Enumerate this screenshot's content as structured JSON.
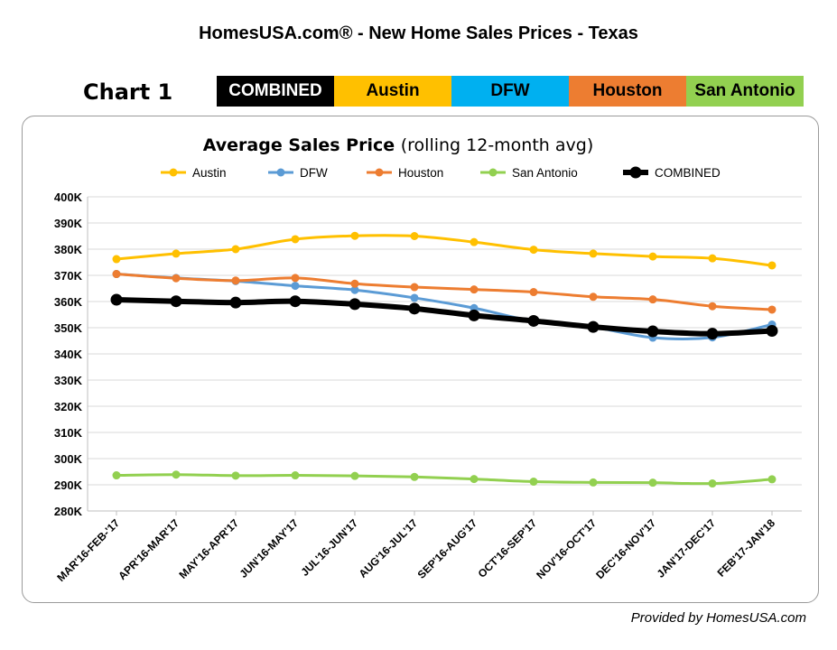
{
  "page_title": "HomesUSA.com® - New Home Sales Prices - Texas",
  "chart_number": "Chart 1",
  "color_bar": [
    {
      "label": "COMBINED",
      "bg": "#000000",
      "fg": "#ffffff"
    },
    {
      "label": "Austin",
      "bg": "#ffc000",
      "fg": "#000000"
    },
    {
      "label": "DFW",
      "bg": "#00b0f0",
      "fg": "#000000"
    },
    {
      "label": "Houston",
      "bg": "#ed7d31",
      "fg": "#000000"
    },
    {
      "label": "San Antonio",
      "bg": "#92d050",
      "fg": "#000000"
    }
  ],
  "footer": "Provided by HomesUSA.com",
  "chart_data": {
    "type": "line",
    "title": "Average Sales Price",
    "subtitle": "(rolling 12-month avg)",
    "legend_position": "top",
    "grid": true,
    "ylim": [
      280000,
      400000
    ],
    "yticks": [
      {
        "v": 280000,
        "label": "280K"
      },
      {
        "v": 290000,
        "label": "290K"
      },
      {
        "v": 300000,
        "label": "300K"
      },
      {
        "v": 310000,
        "label": "310K"
      },
      {
        "v": 320000,
        "label": "320K"
      },
      {
        "v": 330000,
        "label": "330K"
      },
      {
        "v": 340000,
        "label": "340K"
      },
      {
        "v": 350000,
        "label": "350K"
      },
      {
        "v": 360000,
        "label": "360K"
      },
      {
        "v": 370000,
        "label": "370K"
      },
      {
        "v": 380000,
        "label": "380K"
      },
      {
        "v": 390000,
        "label": "390K"
      },
      {
        "v": 400000,
        "label": "400K"
      }
    ],
    "categories": [
      "MAR'16-FEB-'17",
      "APR'16-MAR'17",
      "MAY'16-APR'17",
      "JUN'16-MAY'17",
      "JUL'16-JUN'17",
      "AUG'16-JUL'17",
      "SEP'16-AUG'17",
      "OCT'16-SEP'17",
      "NOV'16-OCT'17",
      "DEC'16-NOV'17",
      "JAN'17-DEC'17",
      "FEB'17-JAN'18"
    ],
    "series": [
      {
        "name": "Austin",
        "color": "#ffc000",
        "width": 3,
        "marker": 4.5,
        "values": [
          376200,
          378300,
          380000,
          383800,
          385100,
          385000,
          382700,
          379800,
          378300,
          377200,
          376500,
          373800
        ]
      },
      {
        "name": "DFW",
        "color": "#5b9bd5",
        "width": 3,
        "marker": 4.5,
        "values": [
          370500,
          369000,
          367800,
          366000,
          364400,
          361400,
          357500,
          352500,
          350200,
          346200,
          346300,
          351200
        ]
      },
      {
        "name": "Houston",
        "color": "#ed7d31",
        "width": 3,
        "marker": 4.5,
        "values": [
          370500,
          368900,
          368000,
          369000,
          366800,
          365500,
          364600,
          363600,
          361800,
          360800,
          358200,
          356900
        ]
      },
      {
        "name": "San Antonio",
        "color": "#92d050",
        "width": 3,
        "marker": 4.5,
        "values": [
          293600,
          293900,
          293500,
          293600,
          293400,
          293000,
          292200,
          291200,
          290900,
          290800,
          290500,
          292100
        ]
      },
      {
        "name": "COMBINED",
        "color": "#000000",
        "width": 6,
        "marker": 6.5,
        "values": [
          360700,
          360100,
          359600,
          360100,
          359000,
          357300,
          354700,
          352600,
          350300,
          348600,
          347700,
          348800
        ]
      }
    ]
  }
}
